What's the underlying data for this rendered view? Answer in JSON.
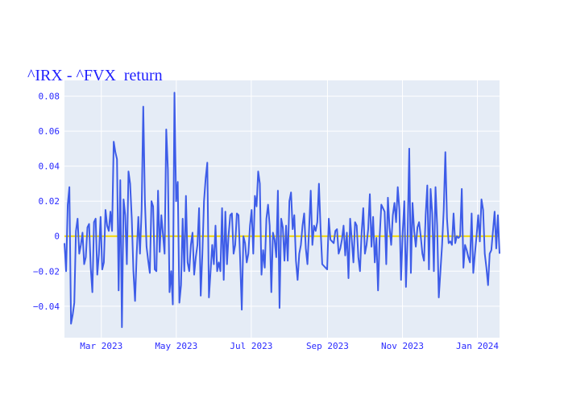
{
  "chart_data": {
    "type": "line",
    "title": "^IRX - ^FVX_return",
    "xlabel": "",
    "ylabel": "",
    "ylim": [
      -0.058,
      0.089
    ],
    "xlim": [
      "2023-01-30",
      "2024-01-19"
    ],
    "grid": true,
    "legend": "none",
    "y_ticks": [
      {
        "value": 0.08,
        "label": "0.08"
      },
      {
        "value": 0.06,
        "label": "0.06"
      },
      {
        "value": 0.04,
        "label": "0.04"
      },
      {
        "value": 0.02,
        "label": "0.02"
      },
      {
        "value": 0,
        "label": "0"
      },
      {
        "value": -0.02,
        "label": "−0.02"
      },
      {
        "value": -0.04,
        "label": "−0.04"
      }
    ],
    "x_ticks": [
      {
        "value": "2023-03-01",
        "label": "Mar 2023"
      },
      {
        "value": "2023-05-01",
        "label": "May 2023"
      },
      {
        "value": "2023-07-01",
        "label": "Jul 2023"
      },
      {
        "value": "2023-09-01",
        "label": "Sep 2023"
      },
      {
        "value": "2023-11-01",
        "label": "Nov 2023"
      },
      {
        "value": "2024-01-01",
        "label": "Jan 2024"
      }
    ],
    "zero_line": {
      "value": 0,
      "color": "#f2d600"
    },
    "series": [
      {
        "name": "",
        "color": "#3d5ce8",
        "start_date": "2023-01-30",
        "end_date": "2024-01-19",
        "values": [
          -0.004,
          -0.02,
          0.018,
          0.028,
          -0.05,
          -0.045,
          -0.038,
          0.003,
          0.01,
          -0.01,
          -0.005,
          0.002,
          -0.016,
          -0.012,
          0.005,
          0.007,
          -0.018,
          -0.032,
          0.008,
          0.01,
          -0.022,
          -0.01,
          0.011,
          -0.019,
          -0.015,
          0.015,
          0.006,
          0.003,
          0.014,
          0.003,
          0.054,
          0.048,
          0.044,
          -0.031,
          0.032,
          -0.052,
          0.021,
          0.012,
          -0.016,
          0.037,
          0.03,
          0.01,
          -0.02,
          -0.037,
          -0.01,
          0.011,
          -0.01,
          0.015,
          0.074,
          0.02,
          -0.006,
          -0.014,
          -0.021,
          0.02,
          0.017,
          -0.019,
          -0.02,
          0.026,
          -0.009,
          0.012,
          0.001,
          -0.01,
          0.061,
          0.038,
          -0.032,
          -0.02,
          -0.039,
          0.082,
          0.02,
          0.031,
          -0.038,
          -0.028,
          0.01,
          -0.02,
          0.023,
          -0.015,
          -0.02,
          -0.005,
          0.002,
          -0.022,
          -0.012,
          -0.005,
          0.016,
          -0.034,
          -0.01,
          0.02,
          0.033,
          0.042,
          -0.035,
          -0.02,
          -0.005,
          -0.016,
          0.006,
          -0.02,
          -0.015,
          -0.02,
          0.016,
          -0.025,
          0.014,
          -0.016,
          0.001,
          0.012,
          0.013,
          -0.01,
          -0.005,
          0.013,
          0.012,
          -0.013,
          -0.042,
          0.0,
          -0.004,
          -0.015,
          -0.01,
          0.006,
          0.015,
          -0.01,
          0.023,
          0.017,
          0.037,
          0.03,
          -0.022,
          -0.008,
          -0.018,
          0.01,
          0.018,
          0.006,
          -0.032,
          0.002,
          -0.002,
          -0.012,
          0.026,
          -0.041,
          0.01,
          0.005,
          -0.014,
          0.006,
          -0.014,
          0.02,
          0.025,
          0.004,
          0.012,
          -0.014,
          -0.025,
          -0.01,
          -0.005,
          0.006,
          0.013,
          -0.007,
          -0.016,
          0.004,
          0.026,
          -0.005,
          0.006,
          0.003,
          0.008,
          0.03,
          0.004,
          -0.016,
          -0.017,
          -0.018,
          -0.019,
          0.01,
          -0.002,
          -0.003,
          -0.004,
          0.003,
          0.004,
          -0.01,
          -0.007,
          -0.002,
          0.006,
          -0.011,
          0.002,
          -0.024,
          0.01,
          -0.002,
          -0.015,
          0.008,
          0.006,
          -0.012,
          -0.02,
          0.002,
          0.016,
          -0.01,
          -0.005,
          0.004,
          0.024,
          -0.006,
          0.011,
          -0.015,
          -0.001,
          -0.031,
          0.0,
          0.018,
          0.016,
          0.014,
          -0.016,
          0.022,
          0.005,
          -0.005,
          0.012,
          0.019,
          0.008,
          0.028,
          0.015,
          -0.025,
          0.002,
          0.02,
          -0.029,
          0.0,
          0.05,
          -0.021,
          0.019,
          0.003,
          -0.006,
          0.005,
          0.008,
          0.0,
          -0.01,
          -0.014,
          0.012,
          0.029,
          -0.019,
          0.027,
          0.013,
          -0.02,
          0.028,
          0.006,
          -0.035,
          -0.02,
          -0.005,
          0.015,
          0.048,
          0.01,
          -0.004,
          -0.003,
          -0.005,
          0.013,
          -0.004,
          0.0,
          -0.001,
          0.0,
          0.027,
          -0.018,
          -0.005,
          -0.008,
          -0.012,
          -0.015,
          0.013,
          -0.021,
          -0.01,
          0.0,
          0.012,
          -0.003,
          0.021,
          0.015,
          -0.01,
          -0.018,
          -0.028,
          -0.01,
          -0.008,
          0.003,
          0.014,
          -0.007,
          0.012,
          -0.01
        ]
      }
    ]
  }
}
